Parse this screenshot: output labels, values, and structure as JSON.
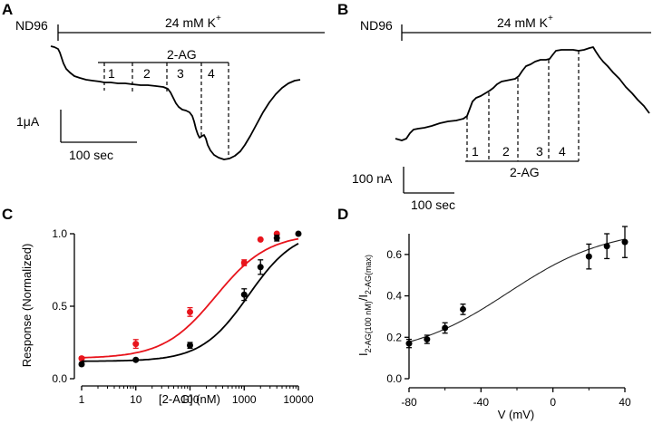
{
  "panel_labels": {
    "a": "A",
    "b": "B",
    "c": "C",
    "d": "D"
  },
  "traces": {
    "a": {
      "solution_baseline": "ND96",
      "solution_high_k": "24 mM K",
      "k_superscript": "+",
      "drug_label": "2-AG",
      "intervals": [
        "1",
        "2",
        "3",
        "4"
      ],
      "scale_y": "1μA",
      "scale_x": "100 sec"
    },
    "b": {
      "solution_baseline": "ND96",
      "solution_high_k": "24 mM K",
      "k_superscript": "+",
      "drug_label": "2-AG",
      "intervals": [
        "1",
        "2",
        "3",
        "4"
      ],
      "scale_y": "100 nA",
      "scale_x": "100 sec"
    }
  },
  "chart_data": [
    {
      "id": "C",
      "type": "scatter",
      "xscale": "log",
      "xlabel": "[2-AG] (nM)",
      "ylabel": "Response (Normalized)",
      "xlim": [
        1,
        10000
      ],
      "ylim": [
        0,
        1.0
      ],
      "xticks": [
        "1",
        "10",
        "100",
        "1000",
        "10000"
      ],
      "yticks": [
        "0.0",
        "0.5",
        "1.0"
      ],
      "series": [
        {
          "name": "red",
          "color": "#e8141c",
          "x": [
            1,
            10,
            100,
            1000,
            2000,
            4000
          ],
          "y": [
            0.14,
            0.24,
            0.46,
            0.8,
            0.96,
            1.0
          ],
          "err": [
            0.01,
            0.03,
            0.03,
            0.02,
            0.0,
            0.0
          ],
          "fit": {
            "bottom": 0.14,
            "top": 1.0,
            "ec50": 300,
            "hill": 0.9
          }
        },
        {
          "name": "black",
          "color": "#000000",
          "x": [
            1,
            10,
            100,
            1000,
            2000,
            4000,
            10000
          ],
          "y": [
            0.1,
            0.13,
            0.23,
            0.58,
            0.77,
            0.97,
            1.0
          ],
          "err": [
            0.01,
            0.0,
            0.02,
            0.04,
            0.05,
            0.02,
            0.0
          ],
          "fit": {
            "bottom": 0.12,
            "top": 1.03,
            "ec50": 1200,
            "hill": 1.0
          }
        }
      ]
    },
    {
      "id": "D",
      "type": "scatter",
      "xlabel": "V (mV)",
      "ylabel_main": "I",
      "ylabel_sub1": "2-AG(100 nM)",
      "ylabel_sep": "/I",
      "ylabel_sub2": "2-AG(max)",
      "xlim": [
        -80,
        40
      ],
      "ylim": [
        0,
        0.7
      ],
      "xticks": [
        "-80",
        "-40",
        "0",
        "40"
      ],
      "yticks": [
        "0.0",
        "0.2",
        "0.4",
        "0.6"
      ],
      "series": [
        {
          "name": "data",
          "color": "#000000",
          "x": [
            -80,
            -70,
            -60,
            -50,
            20,
            30,
            40
          ],
          "y": [
            0.17,
            0.19,
            0.245,
            0.335,
            0.59,
            0.64,
            0.66
          ],
          "err": [
            0.02,
            0.02,
            0.025,
            0.025,
            0.06,
            0.06,
            0.075
          ],
          "fit": {
            "type": "boltzmann",
            "bottom": 0.1,
            "top": 0.73,
            "vhalf": -25,
            "slope": 28
          }
        }
      ]
    }
  ]
}
